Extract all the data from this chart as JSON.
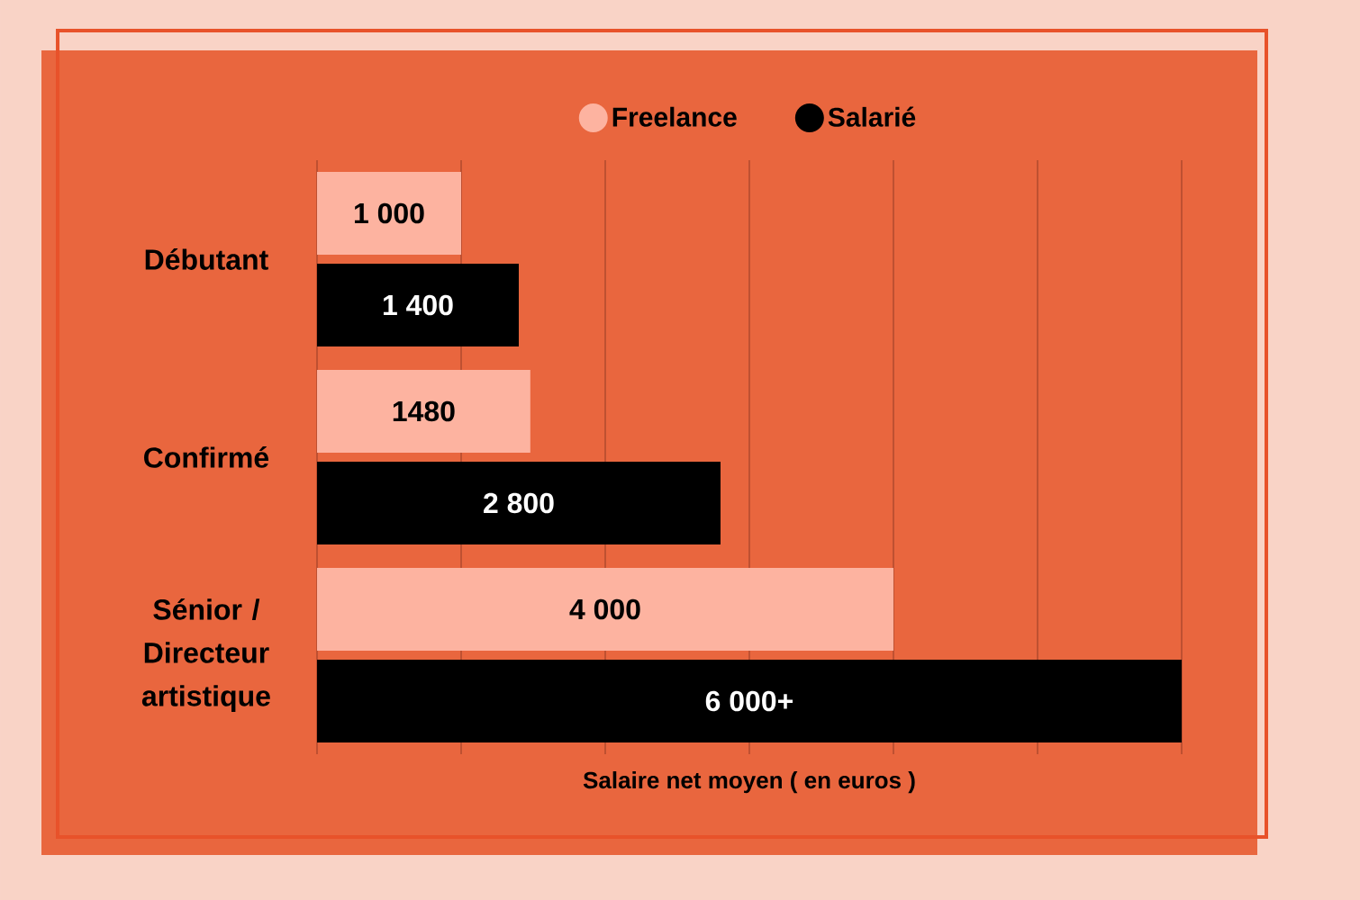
{
  "chart_data": {
    "type": "bar",
    "orientation": "horizontal",
    "categories": [
      "Débutant",
      "Confirmé",
      "Sénior / Directeur artistique"
    ],
    "series": [
      {
        "name": "Freelance",
        "color": "#fdb3a0",
        "values": [
          1000,
          1480,
          4000
        ],
        "value_labels": [
          "1 000",
          "1480",
          "4 000"
        ]
      },
      {
        "name": "Salarié",
        "color": "#000000",
        "values": [
          1400,
          2800,
          6000
        ],
        "value_labels": [
          "1 400",
          "2 800",
          "6 000+"
        ]
      }
    ],
    "xlabel": "Salaire net moyen ( en euros )",
    "xlim": [
      0,
      6000
    ],
    "xticks": [
      {
        "value": 0,
        "label": null
      },
      {
        "value": 1000,
        "label": null
      },
      {
        "value": 2000,
        "label": null
      },
      {
        "value": 3000,
        "label": null
      },
      {
        "value": 4000,
        "label": null
      },
      {
        "value": 5000,
        "label": null
      },
      {
        "value": 6000,
        "label": null
      }
    ],
    "grid": "x",
    "legend": "top",
    "tick_labels": "y"
  }
}
